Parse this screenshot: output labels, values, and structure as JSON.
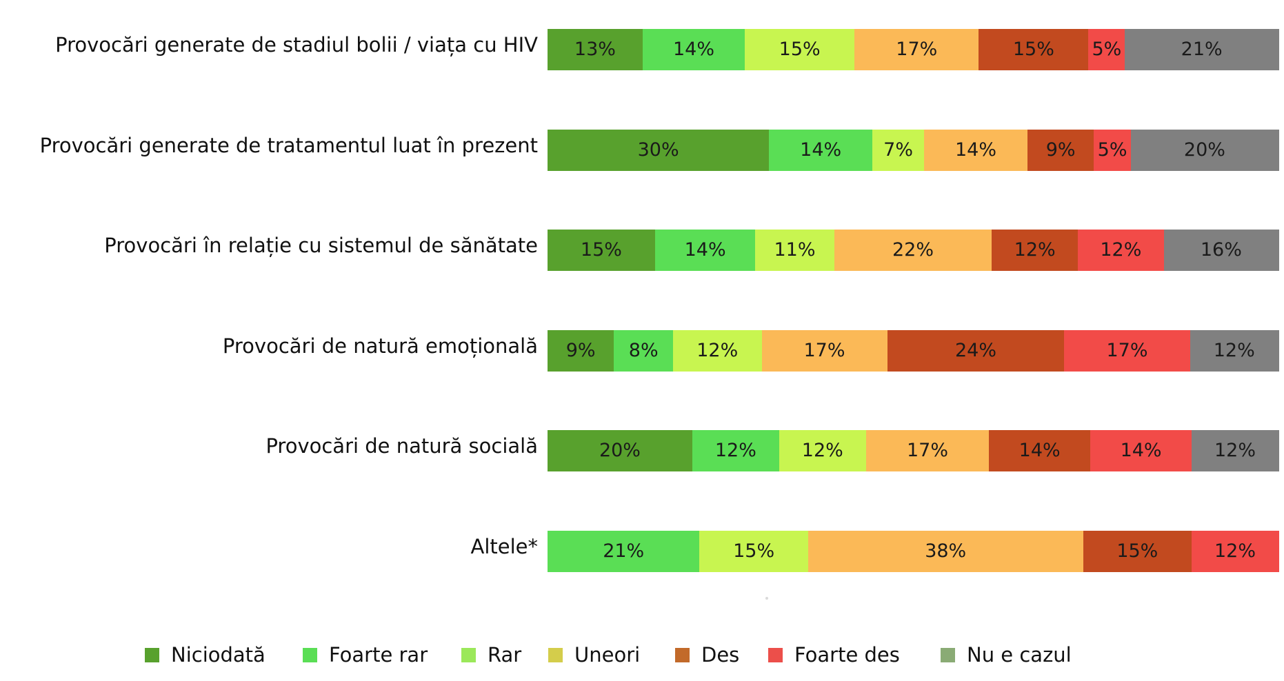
{
  "chart_data": {
    "type": "bar",
    "orientation": "horizontal",
    "stacked": true,
    "categories": [
      "Provocări generate de stadiul bolii / viața cu HIV",
      "Provocări generate de tratamentul luat în prezent",
      "Provocări în relație cu sistemul de sănătate",
      "Provocări de natură emoțională",
      "Provocări de natură socială",
      "Altele*"
    ],
    "series": [
      {
        "name": "Niciodată",
        "color": "#58a12d",
        "values": [
          13,
          30,
          15,
          9,
          20,
          0
        ],
        "labels": [
          "13%",
          "30%",
          "15%",
          "9%",
          "20%",
          ""
        ]
      },
      {
        "name": "Foarte rar",
        "color": "#5ade55",
        "values": [
          14,
          14,
          14,
          8,
          12,
          21
        ],
        "labels": [
          "14%",
          "14%",
          "14%",
          "8%",
          "12%",
          "21%"
        ]
      },
      {
        "name": "Rar",
        "color": "#c8f550",
        "values": [
          15,
          7,
          11,
          12,
          12,
          15
        ],
        "labels": [
          "15%",
          "7%",
          "11%",
          "12%",
          "12%",
          "15%"
        ]
      },
      {
        "name": "Uneori",
        "color": "#fbb957",
        "values": [
          17,
          14,
          22,
          17,
          17,
          38
        ],
        "labels": [
          "17%",
          "14%",
          "22%",
          "17%",
          "17%",
          "38%"
        ]
      },
      {
        "name": "Des",
        "color": "#c24a1f",
        "values": [
          15,
          9,
          12,
          24,
          14,
          15
        ],
        "labels": [
          "15%",
          "9%",
          "12%",
          "24%",
          "14%",
          "15%"
        ]
      },
      {
        "name": "Foarte des",
        "color": "#f24b48",
        "values": [
          5,
          5,
          12,
          17,
          14,
          12
        ],
        "labels": [
          "5%",
          "5%",
          "12%",
          "17%",
          "14%",
          "12%"
        ]
      },
      {
        "name": "Nu e cazul",
        "color": "#808080",
        "values": [
          21,
          20,
          16,
          12,
          12,
          0
        ],
        "labels": [
          "21%",
          "20%",
          "16%",
          "12%",
          "12%",
          ""
        ]
      }
    ],
    "legend": {
      "position": "bottom",
      "items": [
        {
          "label": "Niciodată",
          "color": "#58a12d"
        },
        {
          "label": "Foarte rar",
          "color": "#5ade55"
        },
        {
          "label": "Rar",
          "color": "#9be85a"
        },
        {
          "label": "Uneori",
          "color": "#d4cd4b"
        },
        {
          "label": "Des",
          "color": "#c26a2a"
        },
        {
          "label": "Foarte des",
          "color": "#ec4f4a"
        },
        {
          "label": "Nu e cazul",
          "color": "#8aab75"
        }
      ]
    },
    "xlim": [
      0,
      100
    ],
    "grid": false
  }
}
